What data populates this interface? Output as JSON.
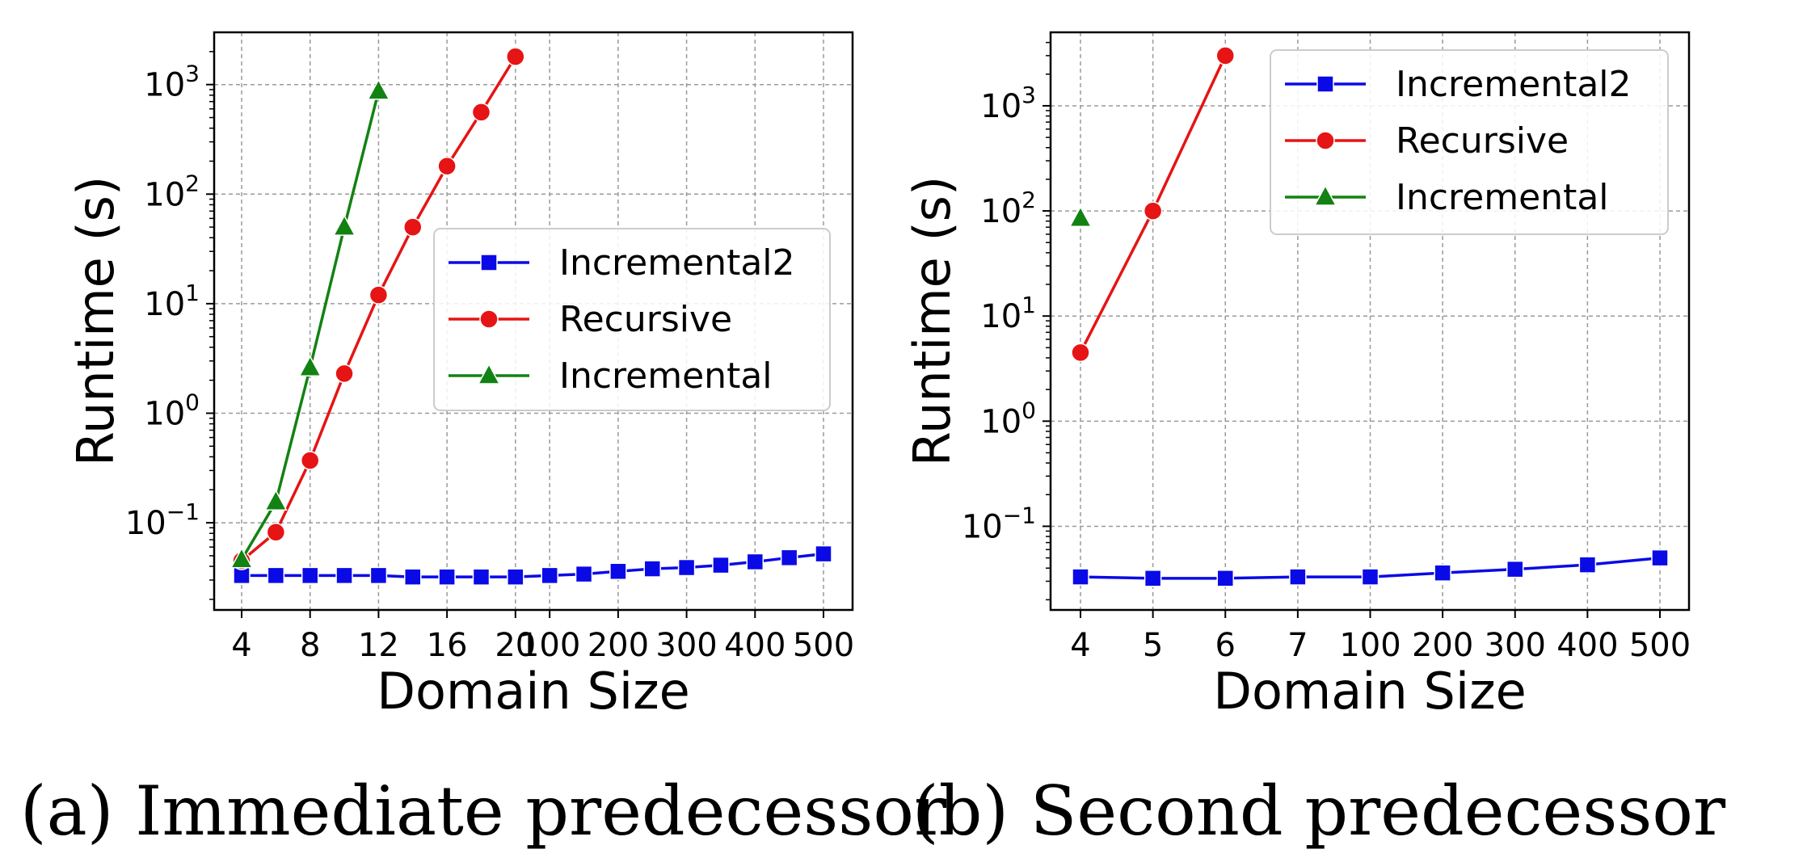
{
  "colors": {
    "Incremental2": "#0a0ae6",
    "Recursive": "#e61414",
    "Incremental": "#128212",
    "grid": "#9a9a9a"
  },
  "chart_data": [
    {
      "type": "line",
      "caption": "(a) Immediate predecessor",
      "xlabel": "Domain Size",
      "ylabel": "Runtime (s)",
      "yscale": "log",
      "ylim": [
        0.016,
        3000
      ],
      "categories": [
        "4",
        "6",
        "8",
        "10",
        "12",
        "14",
        "16",
        "18",
        "20",
        "100",
        "150",
        "200",
        "250",
        "300",
        "350",
        "400",
        "450",
        "500"
      ],
      "xticklabels": [
        "4",
        "8",
        "12",
        "16",
        "20",
        "100",
        "200",
        "300",
        "400",
        "500"
      ],
      "yticks": [
        {
          "base": "10",
          "exp": "−1",
          "value": 0.1
        },
        {
          "base": "10",
          "exp": "0",
          "value": 1
        },
        {
          "base": "10",
          "exp": "1",
          "value": 10
        },
        {
          "base": "10",
          "exp": "2",
          "value": 100
        },
        {
          "base": "10",
          "exp": "3",
          "value": 1000
        }
      ],
      "grid": true,
      "legend_position": "center-right",
      "series": [
        {
          "name": "Incremental2",
          "marker": "square",
          "values": [
            0.033,
            0.033,
            0.033,
            0.033,
            0.033,
            0.032,
            0.032,
            0.032,
            0.032,
            0.033,
            0.034,
            0.036,
            0.038,
            0.039,
            0.041,
            0.044,
            0.048,
            0.052
          ]
        },
        {
          "name": "Recursive",
          "marker": "circle",
          "values": [
            0.045,
            0.082,
            0.37,
            2.3,
            12,
            50,
            180,
            560,
            1800,
            null,
            null,
            null,
            null,
            null,
            null,
            null,
            null,
            null
          ]
        },
        {
          "name": "Incremental",
          "marker": "triangle",
          "values": [
            0.046,
            0.155,
            2.6,
            50,
            870,
            null,
            null,
            null,
            null,
            null,
            null,
            null,
            null,
            null,
            null,
            null,
            null,
            null
          ]
        }
      ]
    },
    {
      "type": "line",
      "caption": "(b) Second predecessor",
      "xlabel": "Domain Size",
      "ylabel": "Runtime (s)",
      "yscale": "log",
      "ylim": [
        0.016,
        5000
      ],
      "categories": [
        "4",
        "5",
        "6",
        "7",
        "100",
        "200",
        "300",
        "400",
        "500"
      ],
      "xticklabels": [
        "4",
        "5",
        "6",
        "7",
        "100",
        "200",
        "300",
        "400",
        "500"
      ],
      "yticks": [
        {
          "base": "10",
          "exp": "−1",
          "value": 0.1
        },
        {
          "base": "10",
          "exp": "0",
          "value": 1
        },
        {
          "base": "10",
          "exp": "1",
          "value": 10
        },
        {
          "base": "10",
          "exp": "2",
          "value": 100
        },
        {
          "base": "10",
          "exp": "3",
          "value": 1000
        }
      ],
      "grid": true,
      "legend_position": "upper-right",
      "series": [
        {
          "name": "Incremental2",
          "marker": "square",
          "values": [
            0.033,
            0.032,
            0.032,
            0.033,
            0.033,
            0.036,
            0.039,
            0.043,
            0.05
          ]
        },
        {
          "name": "Recursive",
          "marker": "circle",
          "values": [
            4.5,
            100,
            3000,
            null,
            null,
            null,
            null,
            null,
            null
          ]
        },
        {
          "name": "Incremental",
          "marker": "triangle",
          "values": [
            85,
            null,
            null,
            null,
            null,
            null,
            null,
            null,
            null
          ]
        }
      ]
    }
  ]
}
